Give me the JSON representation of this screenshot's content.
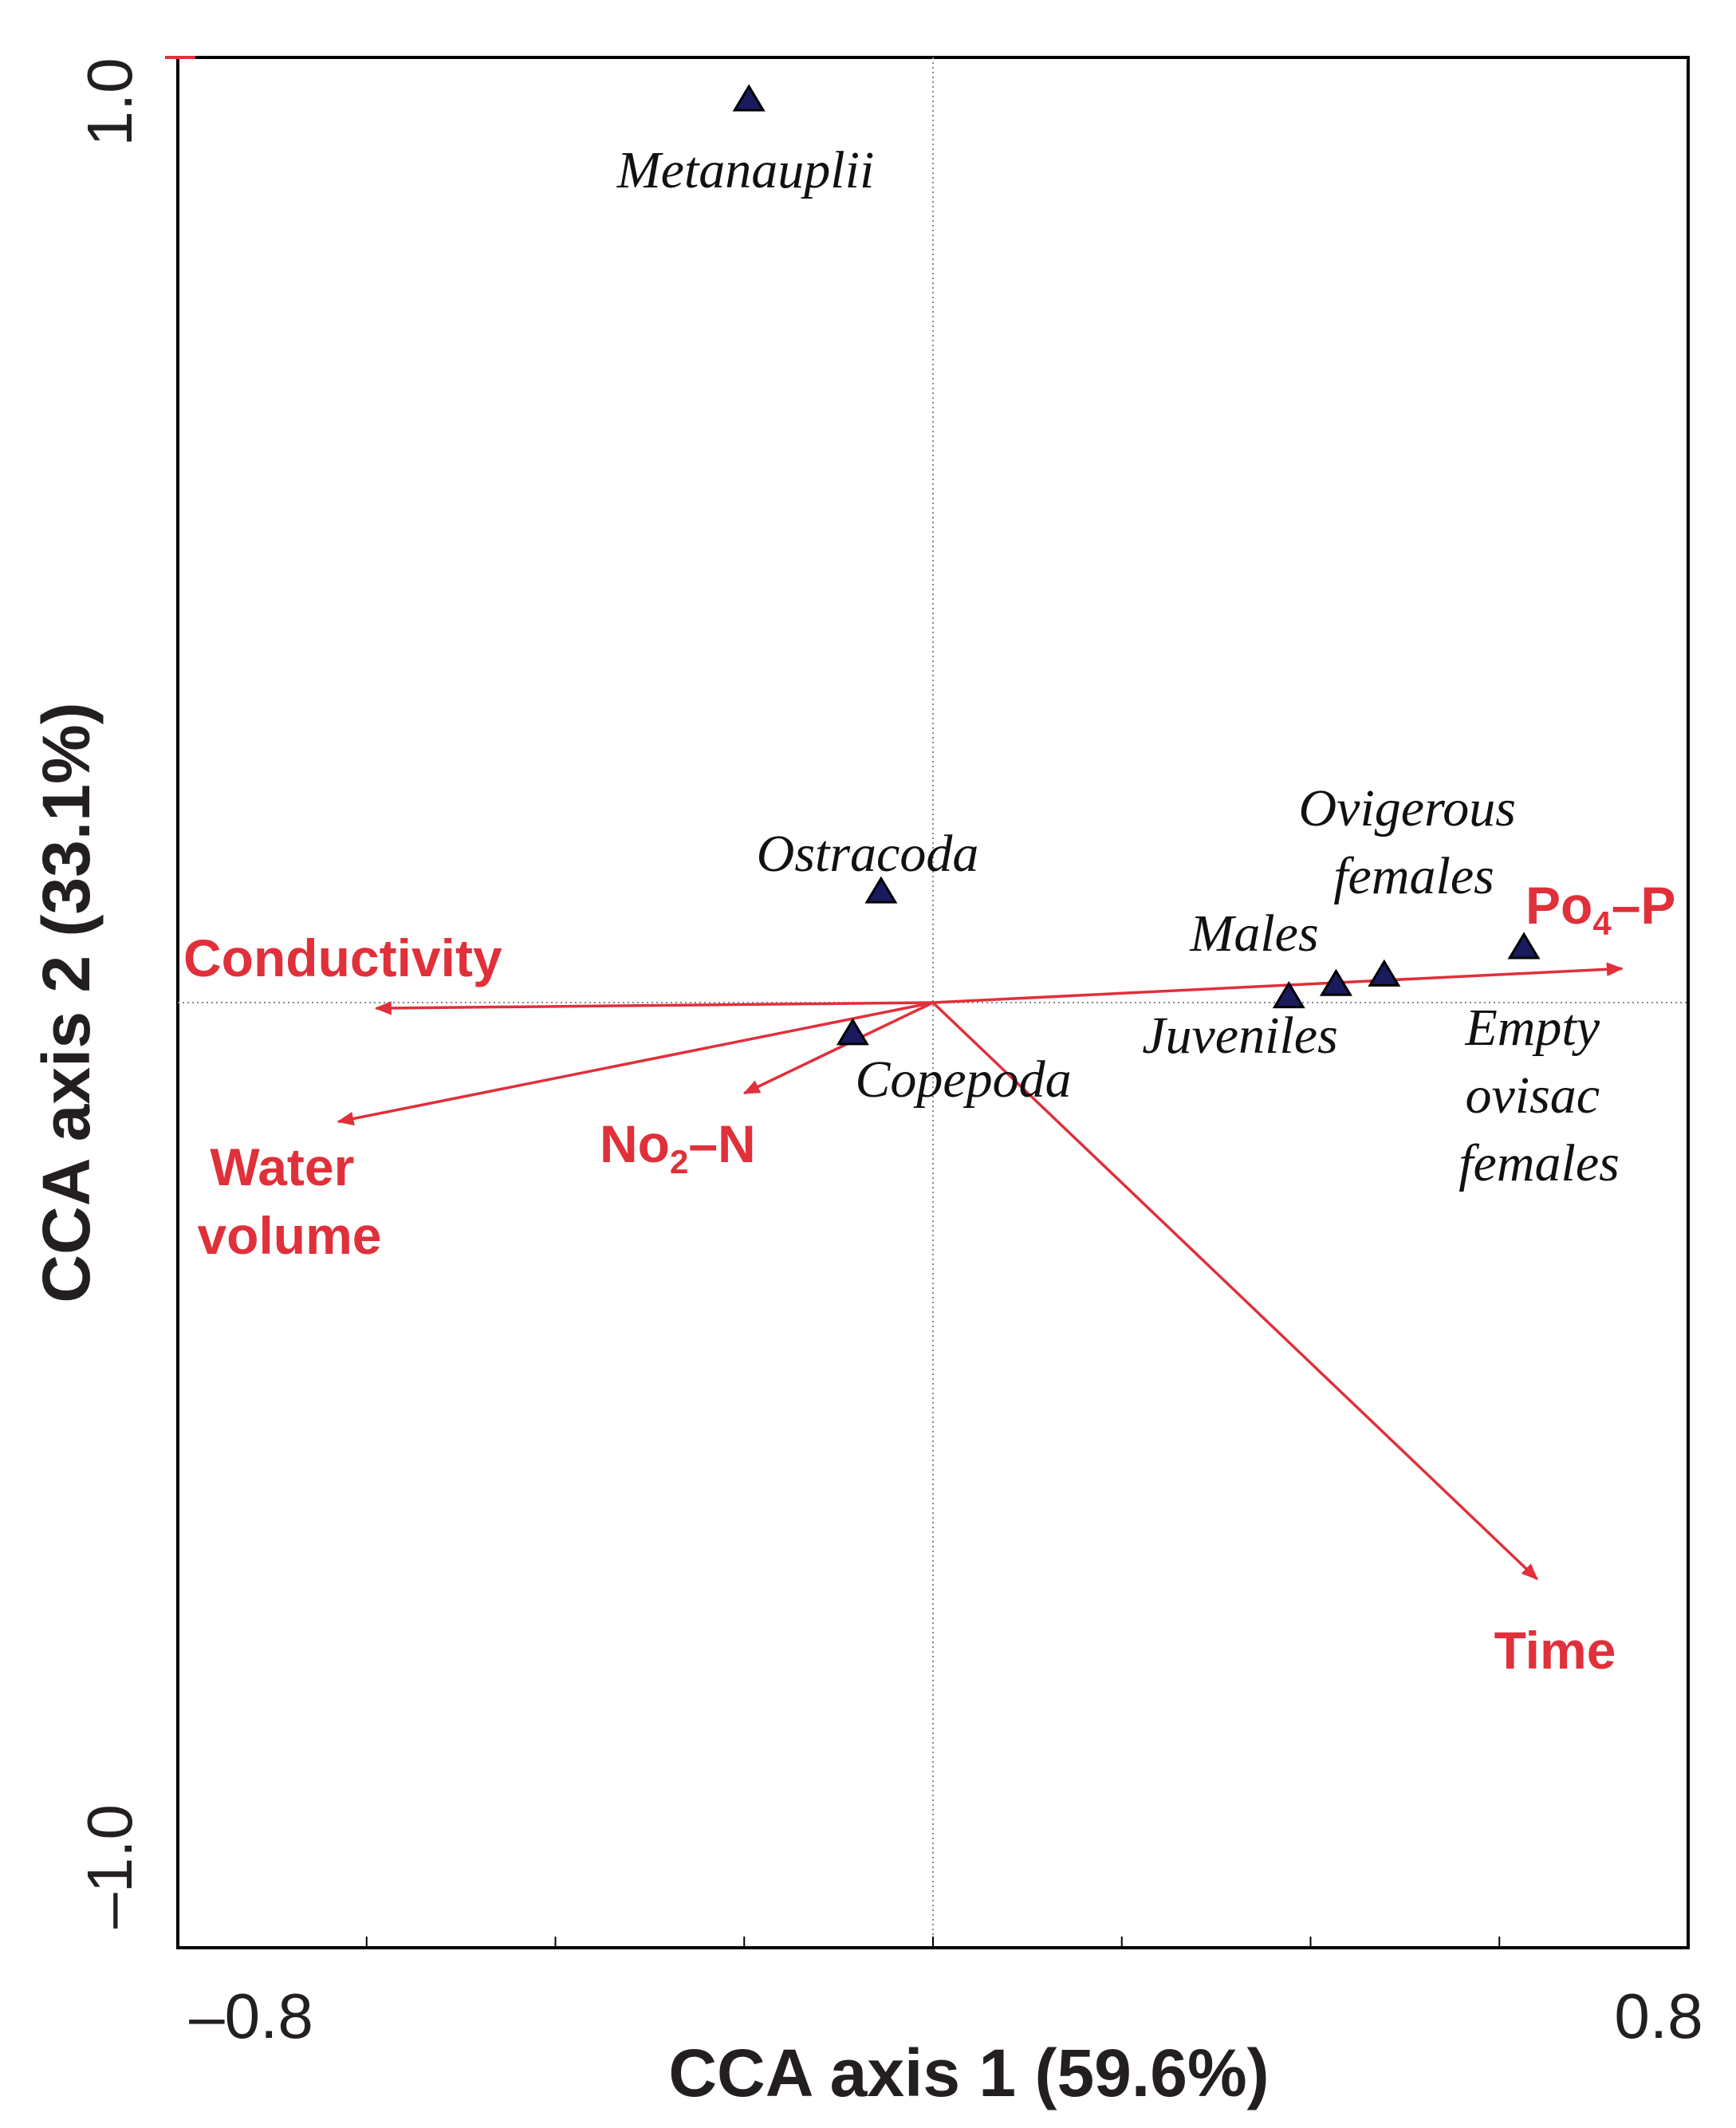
{
  "chart_data": {
    "type": "scatter",
    "subtype": "cca-biplot",
    "xlabel": "CCA axis 1 (59.6%)",
    "ylabel": "CCA axis 2 (33.1%)",
    "xlim": [
      -0.8,
      0.8
    ],
    "ylim": [
      -1.0,
      1.0
    ],
    "x_tick_labels": [
      "–0.8",
      "0.8"
    ],
    "y_tick_labels": [
      "1.0",
      "–1.0"
    ],
    "colors": {
      "species": "#1a1a5e",
      "vectors": "#e0303a",
      "axis": "#000000",
      "text": "#231f20"
    },
    "species": [
      {
        "name": "Metanauplii",
        "x": -0.195,
        "y": 0.955,
        "label": [
          "Metanauplii"
        ]
      },
      {
        "name": "Ostracoda",
        "x": -0.055,
        "y": 0.117,
        "label": [
          "Ostracoda"
        ]
      },
      {
        "name": "Copepoda",
        "x": -0.085,
        "y": -0.033,
        "label": [
          "Copepoda"
        ]
      },
      {
        "name": "Juveniles",
        "x": 0.377,
        "y": 0.006,
        "label": [
          "Juveniles"
        ]
      },
      {
        "name": "Males",
        "x": 0.427,
        "y": 0.019,
        "label": [
          "Males"
        ]
      },
      {
        "name": "Ovigerous females",
        "x": 0.478,
        "y": 0.029,
        "label": [
          "Ovigerous",
          "females"
        ]
      },
      {
        "name": "Empty ovisac females",
        "x": 0.626,
        "y": 0.058,
        "label": [
          "Empty",
          "ovisac",
          "females"
        ]
      }
    ],
    "vectors": [
      {
        "name": "Conductivity",
        "x": -0.59,
        "y": -0.006,
        "label": [
          "Conductivity"
        ]
      },
      {
        "name": "Water volume",
        "x": -0.63,
        "y": -0.126,
        "label": [
          "Water",
          "volume"
        ]
      },
      {
        "name": "No2–N",
        "x": -0.2,
        "y": -0.096,
        "label": [
          "No",
          "2",
          "–N"
        ]
      },
      {
        "name": "Po4–P",
        "x": 0.73,
        "y": 0.036,
        "label": [
          "Po",
          "4",
          "–P"
        ]
      },
      {
        "name": "Time",
        "x": 0.64,
        "y": -0.61,
        "label": [
          "Time"
        ]
      }
    ]
  }
}
